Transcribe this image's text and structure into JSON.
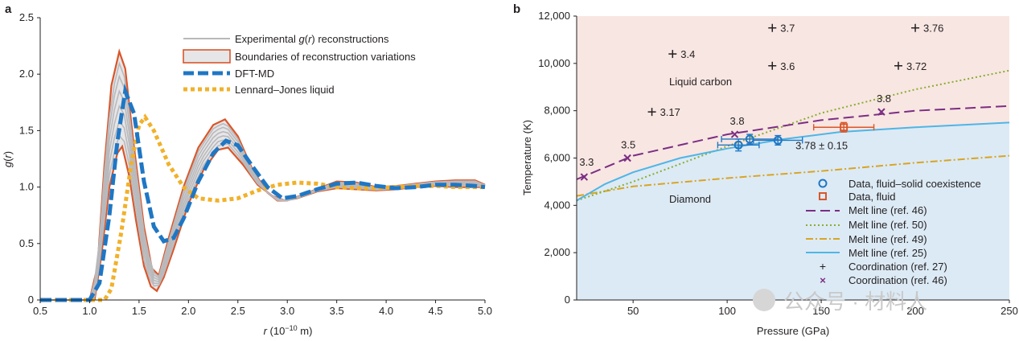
{
  "watermark": "公众号 · 材料人",
  "chart_data": [
    {
      "panel": "a",
      "type": "line",
      "xlabel_italic": "r",
      "xlabel_rest": " (10",
      "xlabel_exp": "−10",
      "xlabel_unit": " m)",
      "ylabel_italic": "g",
      "ylabel_open": "(",
      "ylabel_r": "r",
      "ylabel_close": ")",
      "xlim": [
        0.5,
        5.0
      ],
      "ylim": [
        0,
        2.5
      ],
      "xticks": [
        "0.5",
        "1.0",
        "1.5",
        "2.0",
        "2.5",
        "3.0",
        "3.5",
        "4.0",
        "4.5",
        "5.0"
      ],
      "yticks": [
        "0",
        "0.5",
        "1.0",
        "1.5",
        "2.0",
        "2.5"
      ],
      "legend": {
        "exp_pre": "Experimental ",
        "exp_g": "g",
        "exp_open": "(",
        "exp_r": "r",
        "exp_post": ") reconstructions",
        "bounds": "Boundaries of reconstruction variations",
        "dft": "DFT-MD",
        "lj": "Lennard–Jones liquid"
      },
      "colors": {
        "exp": "#b9b9bc",
        "bounds": "#d9562a",
        "dft": "#1f77c4",
        "lj": "#f1b12a",
        "fill": "#e6e6e8"
      },
      "upper_boundary": [
        [
          1.0,
          0
        ],
        [
          1.08,
          0.3
        ],
        [
          1.15,
          1.2
        ],
        [
          1.22,
          1.9
        ],
        [
          1.3,
          2.2
        ],
        [
          1.36,
          2.05
        ],
        [
          1.45,
          1.35
        ],
        [
          1.55,
          0.65
        ],
        [
          1.63,
          0.28
        ],
        [
          1.7,
          0.22
        ],
        [
          1.8,
          0.55
        ],
        [
          1.95,
          1.0
        ],
        [
          2.1,
          1.35
        ],
        [
          2.25,
          1.55
        ],
        [
          2.37,
          1.6
        ],
        [
          2.5,
          1.45
        ],
        [
          2.65,
          1.15
        ],
        [
          2.8,
          0.95
        ],
        [
          2.9,
          0.88
        ],
        [
          3.0,
          0.88
        ],
        [
          3.15,
          0.93
        ],
        [
          3.35,
          1.0
        ],
        [
          3.5,
          1.05
        ],
        [
          3.7,
          1.04
        ],
        [
          3.9,
          1.0
        ],
        [
          4.1,
          1.01
        ],
        [
          4.3,
          1.03
        ],
        [
          4.5,
          1.05
        ],
        [
          4.7,
          1.06
        ],
        [
          4.9,
          1.06
        ],
        [
          5.0,
          1.02
        ]
      ],
      "lower_boundary": [
        [
          1.05,
          0
        ],
        [
          1.12,
          0.4
        ],
        [
          1.2,
          1.0
        ],
        [
          1.28,
          1.3
        ],
        [
          1.33,
          1.36
        ],
        [
          1.4,
          1.1
        ],
        [
          1.47,
          0.7
        ],
        [
          1.55,
          0.3
        ],
        [
          1.62,
          0.12
        ],
        [
          1.68,
          0.08
        ],
        [
          1.75,
          0.2
        ],
        [
          1.85,
          0.45
        ],
        [
          2.0,
          0.85
        ],
        [
          2.15,
          1.15
        ],
        [
          2.3,
          1.33
        ],
        [
          2.4,
          1.35
        ],
        [
          2.55,
          1.2
        ],
        [
          2.7,
          1.02
        ],
        [
          2.85,
          0.92
        ],
        [
          2.98,
          0.88
        ],
        [
          3.1,
          0.9
        ],
        [
          3.3,
          0.96
        ],
        [
          3.5,
          0.99
        ],
        [
          3.7,
          0.98
        ],
        [
          3.9,
          0.97
        ],
        [
          4.1,
          0.98
        ],
        [
          4.3,
          1.0
        ],
        [
          4.5,
          1.01
        ],
        [
          4.7,
          1.0
        ],
        [
          4.9,
          1.0
        ],
        [
          5.0,
          1.0
        ]
      ],
      "dft_md": [
        [
          0.5,
          0
        ],
        [
          1.0,
          0
        ],
        [
          1.1,
          0.15
        ],
        [
          1.2,
          0.75
        ],
        [
          1.28,
          1.4
        ],
        [
          1.36,
          1.85
        ],
        [
          1.45,
          1.65
        ],
        [
          1.55,
          1.05
        ],
        [
          1.65,
          0.65
        ],
        [
          1.75,
          0.52
        ],
        [
          1.85,
          0.55
        ],
        [
          1.95,
          0.72
        ],
        [
          2.1,
          1.05
        ],
        [
          2.25,
          1.3
        ],
        [
          2.38,
          1.41
        ],
        [
          2.5,
          1.37
        ],
        [
          2.65,
          1.18
        ],
        [
          2.8,
          1.0
        ],
        [
          2.95,
          0.9
        ],
        [
          3.1,
          0.92
        ],
        [
          3.3,
          0.98
        ],
        [
          3.5,
          1.03
        ],
        [
          3.7,
          1.04
        ],
        [
          3.9,
          1.01
        ],
        [
          4.1,
          0.99
        ],
        [
          4.3,
          1.0
        ],
        [
          4.5,
          1.02
        ],
        [
          4.7,
          1.02
        ],
        [
          4.9,
          1.01
        ],
        [
          5.0,
          1.0
        ]
      ],
      "lj": [
        [
          0.5,
          0
        ],
        [
          1.15,
          0
        ],
        [
          1.22,
          0.1
        ],
        [
          1.32,
          0.6
        ],
        [
          1.42,
          1.2
        ],
        [
          1.5,
          1.55
        ],
        [
          1.56,
          1.62
        ],
        [
          1.65,
          1.5
        ],
        [
          1.8,
          1.2
        ],
        [
          1.95,
          1.0
        ],
        [
          2.1,
          0.9
        ],
        [
          2.3,
          0.88
        ],
        [
          2.5,
          0.9
        ],
        [
          2.7,
          0.97
        ],
        [
          2.9,
          1.02
        ],
        [
          3.1,
          1.04
        ],
        [
          3.3,
          1.03
        ],
        [
          3.5,
          1.0
        ],
        [
          3.7,
          0.99
        ],
        [
          3.9,
          0.99
        ],
        [
          4.1,
          1.0
        ],
        [
          4.3,
          1.01
        ],
        [
          4.5,
          1.01
        ],
        [
          4.7,
          1.0
        ],
        [
          5.0,
          1.0
        ]
      ],
      "experimental_peaks": [
        1.45,
        1.55,
        1.65,
        1.75,
        1.9,
        2.0
      ]
    },
    {
      "panel": "b",
      "type": "scatter",
      "xlabel": "Pressure (GPa)",
      "ylabel": "Temperature (K)",
      "xlim": [
        20,
        250
      ],
      "ylim": [
        0,
        12000
      ],
      "xticks": [
        "50",
        "100",
        "150",
        "200",
        "250"
      ],
      "yticks": [
        "0",
        "2,000",
        "4,000",
        "6,000",
        "8,000",
        "10,000",
        "12,000"
      ],
      "region_labels": {
        "liquid": "Liquid carbon",
        "solid": "Diamond"
      },
      "colors": {
        "liquid_bg": "#f8e6e2",
        "solid_bg": "#dceaf5",
        "ref46": "#7b2e83",
        "ref50": "#8aad32",
        "ref49": "#d9a424",
        "ref25": "#4fb5e6",
        "data": "#1f77c4",
        "fluid": "#d9562a",
        "cross": "#231f20"
      },
      "melt_ref46": [
        [
          20,
          5100
        ],
        [
          50,
          6100
        ],
        [
          100,
          7000
        ],
        [
          150,
          7600
        ],
        [
          200,
          8000
        ],
        [
          250,
          8200
        ]
      ],
      "melt_ref50": [
        [
          20,
          4200
        ],
        [
          50,
          5000
        ],
        [
          100,
          6500
        ],
        [
          150,
          7900
        ],
        [
          200,
          8900
        ],
        [
          250,
          9700
        ]
      ],
      "melt_ref49": [
        [
          20,
          4400
        ],
        [
          50,
          4800
        ],
        [
          100,
          5150
        ],
        [
          150,
          5450
        ],
        [
          200,
          5800
        ],
        [
          250,
          6100
        ]
      ],
      "melt_ref25": [
        [
          20,
          4200
        ],
        [
          35,
          4900
        ],
        [
          50,
          5400
        ],
        [
          75,
          6000
        ],
        [
          100,
          6400
        ],
        [
          130,
          6800
        ],
        [
          160,
          7100
        ],
        [
          200,
          7300
        ],
        [
          250,
          7500
        ]
      ],
      "coexistence_points": [
        {
          "x": 106,
          "y": 6550,
          "xerr": 11,
          "yerr": 250
        },
        {
          "x": 112,
          "y": 6800,
          "xerr": 15,
          "yerr": 200
        },
        {
          "x": 127,
          "y": 6750,
          "xerr": 13,
          "yerr": 200
        }
      ],
      "fluid_point": {
        "x": 162,
        "y": 7300,
        "xerr": 16,
        "yerr": 200,
        "label": "3.78 ± 0.15"
      },
      "coordination_ref27": [
        {
          "x": 71,
          "y": 10400,
          "label": "3.4"
        },
        {
          "x": 60,
          "y": 7950,
          "label": "3.17"
        },
        {
          "x": 124,
          "y": 11500,
          "label": "3.7"
        },
        {
          "x": 124,
          "y": 9900,
          "label": "3.6"
        },
        {
          "x": 200,
          "y": 11500,
          "label": "3.76"
        },
        {
          "x": 191,
          "y": 9900,
          "label": "3.72"
        }
      ],
      "coordination_ref46": [
        {
          "x": 24,
          "y": 5200,
          "label": "3.3"
        },
        {
          "x": 47,
          "y": 6000,
          "label": "3.5"
        },
        {
          "x": 104,
          "y": 7000,
          "label": "3.8"
        },
        {
          "x": 182,
          "y": 7950,
          "label": "3.8"
        }
      ],
      "legend": [
        "Data, fluid–solid coexistence",
        "Data, fluid",
        "Melt line (ref. 46)",
        "Melt line (ref. 50)",
        "Melt line (ref. 49)",
        "Melt line (ref. 25)",
        "Coordination (ref. 27)",
        "Coordination (ref. 46)"
      ]
    }
  ]
}
